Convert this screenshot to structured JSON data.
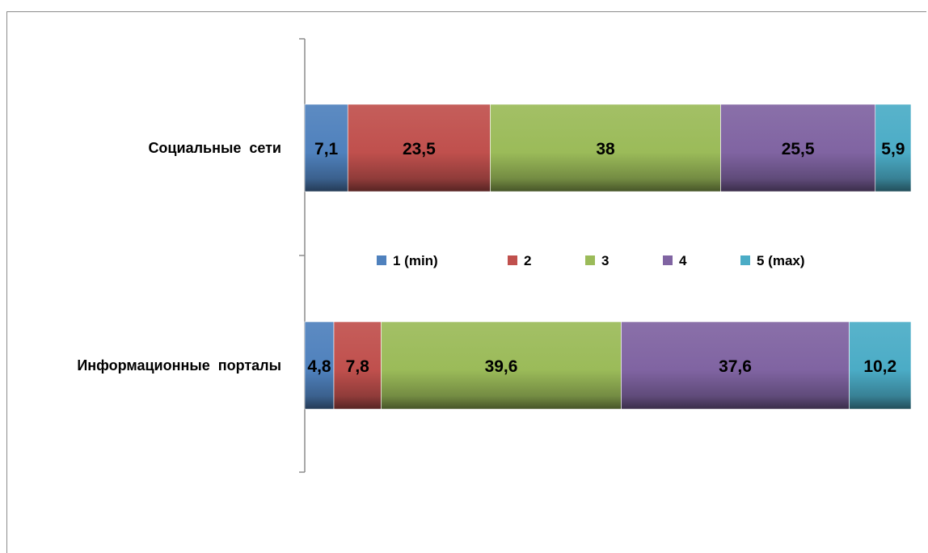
{
  "chart_data": {
    "type": "bar",
    "orientation": "horizontal",
    "stacked": true,
    "categories": [
      "Социальные  сети",
      "Информационные  порталы"
    ],
    "series": [
      {
        "name": "1 (min)",
        "color": "#4f81bd",
        "values": [
          7.1,
          4.8
        ],
        "labels": [
          "7,1",
          "4,8"
        ]
      },
      {
        "name": "2",
        "color": "#c0504d",
        "values": [
          23.5,
          7.8
        ],
        "labels": [
          "23,5",
          "7,8"
        ]
      },
      {
        "name": "3",
        "color": "#9bbb59",
        "values": [
          38,
          39.6
        ],
        "labels": [
          "38",
          "39,6"
        ]
      },
      {
        "name": "4",
        "color": "#8064a2",
        "values": [
          25.5,
          37.6
        ],
        "labels": [
          "25,5",
          "37,6"
        ]
      },
      {
        "name": "5 (max)",
        "color": "#4bacc6",
        "values": [
          5.9,
          10.2
        ],
        "labels": [
          "5,9",
          "10,2"
        ]
      }
    ],
    "xlim": [
      0,
      100
    ],
    "legend_position": "center",
    "grid": false
  }
}
